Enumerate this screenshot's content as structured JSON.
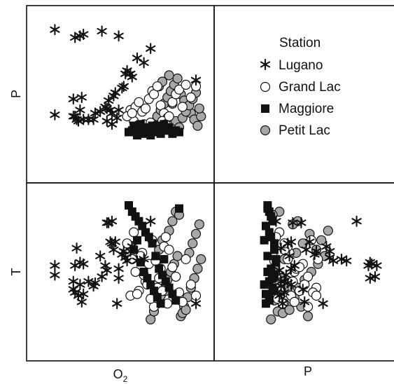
{
  "chart_data": {
    "type": "scatter",
    "layout": "scatterplot-matrix",
    "variables": [
      "O2",
      "P",
      "T"
    ],
    "panels": [
      {
        "name": "P-vs-O2",
        "x": "O2",
        "y": "P"
      },
      {
        "name": "T-vs-O2",
        "x": "O2",
        "y": "T"
      },
      {
        "name": "T-vs-P",
        "x": "P",
        "y": "T"
      }
    ],
    "axes": {
      "O2": {
        "range": [
          0,
          100
        ]
      },
      "P": {
        "range": [
          0,
          100
        ]
      },
      "T": {
        "range": [
          0,
          100
        ]
      }
    },
    "bottom_labels": {
      "o2_main": "O",
      "o2_sub": "2",
      "p": "P"
    },
    "left_labels": {
      "p": "P",
      "t": "T"
    },
    "legend": {
      "title": "Station",
      "placement": "top-right"
    },
    "grid": false,
    "series": [
      {
        "name": "Lugano",
        "marker": "star",
        "color": "#111111",
        "points": [
          {
            "O2": 11,
            "P": 91,
            "T": 54
          },
          {
            "O2": 23,
            "P": 86,
            "T": 54
          },
          {
            "O2": 26,
            "P": 87,
            "T": 56
          },
          {
            "O2": 28,
            "P": 88,
            "T": 55
          },
          {
            "O2": 39,
            "P": 90,
            "T": 47
          },
          {
            "O2": 49,
            "P": 87,
            "T": 46
          },
          {
            "O2": 68,
            "P": 79,
            "T": 82
          },
          {
            "O2": 60,
            "P": 73,
            "T": 57
          },
          {
            "O2": 64,
            "P": 70,
            "T": 58
          },
          {
            "O2": 53,
            "P": 63,
            "T": 59
          },
          {
            "O2": 54,
            "P": 65,
            "T": 57
          },
          {
            "O2": 56,
            "P": 63,
            "T": 63
          },
          {
            "O2": 57,
            "P": 61,
            "T": 66
          },
          {
            "O2": 52,
            "P": 55,
            "T": 63
          },
          {
            "O2": 51,
            "P": 54,
            "T": 61
          },
          {
            "O2": 47,
            "P": 51,
            "T": 69
          },
          {
            "O2": 46,
            "P": 49,
            "T": 64
          },
          {
            "O2": 43,
            "P": 46,
            "T": 81
          },
          {
            "O2": 42,
            "P": 41,
            "T": 81
          },
          {
            "O2": 44,
            "P": 40,
            "T": 69
          },
          {
            "O2": 45,
            "P": 38,
            "T": 68
          },
          {
            "O2": 27,
            "P": 48,
            "T": 31
          },
          {
            "O2": 26,
            "P": 40,
            "T": 42
          },
          {
            "O2": 22,
            "P": 47,
            "T": 39
          },
          {
            "O2": 23,
            "P": 36,
            "T": 37
          },
          {
            "O2": 25,
            "P": 33,
            "T": 35
          },
          {
            "O2": 28,
            "P": 34,
            "T": 36
          },
          {
            "O2": 31,
            "P": 34,
            "T": 44
          },
          {
            "O2": 34,
            "P": 34,
            "T": 41
          },
          {
            "O2": 35,
            "P": 38,
            "T": 43
          },
          {
            "O2": 22,
            "P": 36,
            "T": 44
          },
          {
            "O2": 45,
            "P": 31,
            "T": 82
          },
          {
            "O2": 11,
            "P": 37,
            "T": 48
          },
          {
            "O2": 41,
            "P": 42,
            "T": 54
          },
          {
            "O2": 49,
            "P": 40,
            "T": 52
          },
          {
            "O2": 42,
            "P": 33,
            "T": 51
          },
          {
            "O2": 48,
            "P": 35,
            "T": 30
          },
          {
            "O2": 38,
            "P": 39,
            "T": 60
          },
          {
            "O2": 24,
            "P": 34,
            "T": 65
          },
          {
            "O2": 95,
            "P": 59,
            "T": 30
          }
        ]
      },
      {
        "name": "Grand Lac",
        "marker": "circle",
        "color": "#ffffff",
        "points": [
          {
            "O2": 56,
            "P": 40,
            "T": 35
          },
          {
            "O2": 59,
            "P": 42,
            "T": 50
          },
          {
            "O2": 61,
            "P": 45,
            "T": 38
          },
          {
            "O2": 63,
            "P": 39,
            "T": 62
          },
          {
            "O2": 65,
            "P": 41,
            "T": 44
          },
          {
            "O2": 67,
            "P": 47,
            "T": 55
          },
          {
            "O2": 69,
            "P": 52,
            "T": 70
          },
          {
            "O2": 70,
            "P": 50,
            "T": 28
          },
          {
            "O2": 72,
            "P": 55,
            "T": 40
          },
          {
            "O2": 74,
            "P": 43,
            "T": 52
          },
          {
            "O2": 76,
            "P": 38,
            "T": 66
          },
          {
            "O2": 78,
            "P": 35,
            "T": 30
          },
          {
            "O2": 58,
            "P": 33,
            "T": 75
          },
          {
            "O2": 60,
            "P": 30,
            "T": 36
          },
          {
            "O2": 62,
            "P": 29,
            "T": 60
          },
          {
            "O2": 64,
            "P": 31,
            "T": 48
          },
          {
            "O2": 66,
            "P": 28,
            "T": 42
          },
          {
            "O2": 68,
            "P": 32,
            "T": 33
          },
          {
            "O2": 71,
            "P": 30,
            "T": 57
          },
          {
            "O2": 73,
            "P": 29,
            "T": 46
          },
          {
            "O2": 75,
            "P": 33,
            "T": 38
          },
          {
            "O2": 77,
            "P": 31,
            "T": 72
          },
          {
            "O2": 79,
            "P": 36,
            "T": 64
          },
          {
            "O2": 81,
            "P": 45,
            "T": 53
          },
          {
            "O2": 83,
            "P": 50,
            "T": 47
          },
          {
            "O2": 85,
            "P": 53,
            "T": 37
          },
          {
            "O2": 87,
            "P": 42,
            "T": 31
          },
          {
            "O2": 89,
            "P": 56,
            "T": 58
          },
          {
            "O2": 92,
            "P": 48,
            "T": 42
          },
          {
            "O2": 95,
            "P": 55,
            "T": 35
          },
          {
            "O2": 54,
            "P": 36,
            "T": 68
          },
          {
            "O2": 57,
            "P": 38,
            "T": 58
          }
        ]
      },
      {
        "name": "Maggiore",
        "marker": "square",
        "color": "#111111",
        "points": [
          {
            "O2": 55,
            "P": 26,
            "T": 92
          },
          {
            "O2": 57,
            "P": 27,
            "T": 88
          },
          {
            "O2": 59,
            "P": 28,
            "T": 85
          },
          {
            "O2": 61,
            "P": 29,
            "T": 82
          },
          {
            "O2": 63,
            "P": 25,
            "T": 79
          },
          {
            "O2": 65,
            "P": 27,
            "T": 75
          },
          {
            "O2": 67,
            "P": 28,
            "T": 72
          },
          {
            "O2": 69,
            "P": 30,
            "T": 68
          },
          {
            "O2": 71,
            "P": 26,
            "T": 60
          },
          {
            "O2": 73,
            "P": 28,
            "T": 52
          },
          {
            "O2": 75,
            "P": 30,
            "T": 48
          },
          {
            "O2": 77,
            "P": 27,
            "T": 44
          },
          {
            "O2": 79,
            "P": 29,
            "T": 40
          },
          {
            "O2": 81,
            "P": 25,
            "T": 36
          },
          {
            "O2": 83,
            "P": 27,
            "T": 32
          },
          {
            "O2": 85,
            "P": 26,
            "T": 90
          },
          {
            "O2": 58,
            "P": 30,
            "T": 64
          },
          {
            "O2": 60,
            "P": 24,
            "T": 70
          },
          {
            "O2": 62,
            "P": 31,
            "T": 56
          },
          {
            "O2": 64,
            "P": 26,
            "T": 50
          },
          {
            "O2": 66,
            "P": 29,
            "T": 46
          },
          {
            "O2": 68,
            "P": 24,
            "T": 42
          },
          {
            "O2": 70,
            "P": 30,
            "T": 38
          },
          {
            "O2": 72,
            "P": 27,
            "T": 34
          },
          {
            "O2": 74,
            "P": 25,
            "T": 30
          },
          {
            "O2": 76,
            "P": 31,
            "T": 58
          }
        ]
      },
      {
        "name": "Petit Lac",
        "marker": "circle",
        "color": "#a8a8a8",
        "points": [
          {
            "O2": 68,
            "P": 28,
            "T": 20
          },
          {
            "O2": 70,
            "P": 32,
            "T": 25
          },
          {
            "O2": 72,
            "P": 36,
            "T": 30
          },
          {
            "O2": 74,
            "P": 40,
            "T": 35
          },
          {
            "O2": 76,
            "P": 44,
            "T": 40
          },
          {
            "O2": 78,
            "P": 48,
            "T": 45
          },
          {
            "O2": 80,
            "P": 52,
            "T": 50
          },
          {
            "O2": 82,
            "P": 56,
            "T": 55
          },
          {
            "O2": 84,
            "P": 60,
            "T": 60
          },
          {
            "O2": 86,
            "P": 50,
            "T": 22
          },
          {
            "O2": 88,
            "P": 46,
            "T": 28
          },
          {
            "O2": 90,
            "P": 42,
            "T": 34
          },
          {
            "O2": 92,
            "P": 38,
            "T": 40
          },
          {
            "O2": 94,
            "P": 34,
            "T": 46
          },
          {
            "O2": 96,
            "P": 30,
            "T": 52
          },
          {
            "O2": 98,
            "P": 36,
            "T": 58
          },
          {
            "O2": 73,
            "P": 55,
            "T": 64
          },
          {
            "O2": 75,
            "P": 58,
            "T": 70
          },
          {
            "O2": 79,
            "P": 62,
            "T": 76
          },
          {
            "O2": 81,
            "P": 44,
            "T": 82
          },
          {
            "O2": 83,
            "P": 33,
            "T": 88
          },
          {
            "O2": 85,
            "P": 29,
            "T": 86
          },
          {
            "O2": 87,
            "P": 35,
            "T": 24
          },
          {
            "O2": 89,
            "P": 39,
            "T": 26
          },
          {
            "O2": 91,
            "P": 43,
            "T": 62
          },
          {
            "O2": 93,
            "P": 47,
            "T": 68
          },
          {
            "O2": 95,
            "P": 51,
            "T": 74
          },
          {
            "O2": 97,
            "P": 41,
            "T": 80
          },
          {
            "O2": 71,
            "P": 30,
            "T": 32
          },
          {
            "O2": 77,
            "P": 34,
            "T": 38
          }
        ]
      }
    ]
  }
}
